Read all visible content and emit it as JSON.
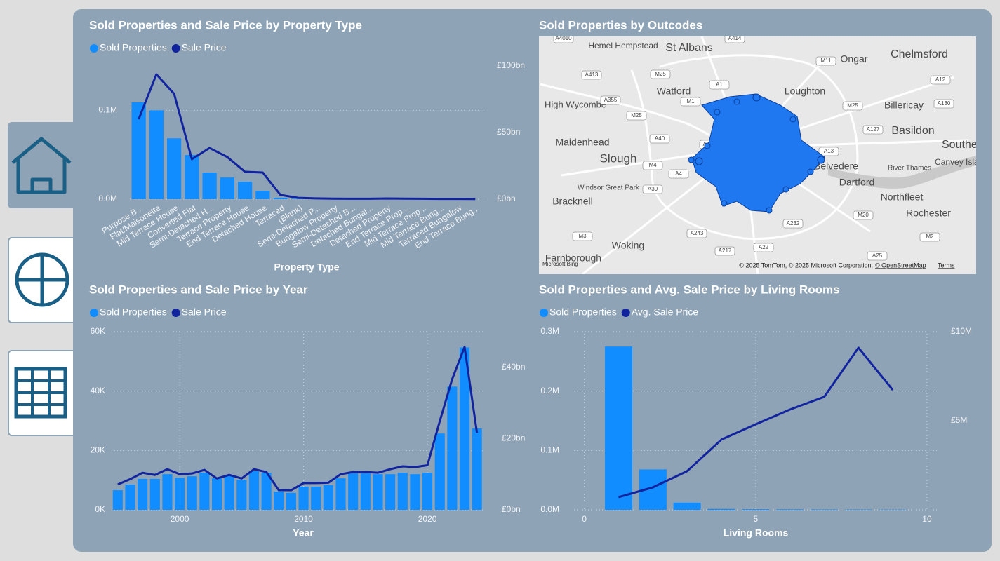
{
  "chart_data": [
    {
      "type": "combo",
      "title": "Sold Properties and Sale Price by Property Type",
      "x_label": "Property Type",
      "categories": [
        "Purpose B...",
        "Flat/Maisonette",
        "Mid Terrace House",
        "Converted Flat",
        "Semi-Detached H...",
        "Terrace Property",
        "End Terrace House",
        "Detached House",
        "Terraced",
        "(Blank)",
        "Semi-Detached P...",
        "Bungalow Property",
        "Semi-Detached B...",
        "Detached Bungal...",
        "Detached Property",
        "End Terrace Prop...",
        "Mid Terrace Prop...",
        "Mid Terrace Bung...",
        "Terraced Bungalow",
        "End Terrace Bung..."
      ],
      "series": [
        {
          "name": "Sold Properties",
          "type": "bar",
          "color": "#118dff",
          "values": [
            109000,
            100000,
            68500,
            49600,
            30000,
            24400,
            19700,
            9400,
            1600,
            600,
            400,
            300,
            250,
            200,
            200,
            150,
            150,
            100,
            100,
            50
          ]
        },
        {
          "name": "Sale Price",
          "type": "line",
          "color": "#12239e",
          "axis": "y2",
          "values": [
            60,
            93.7,
            79,
            30,
            38.4,
            31.6,
            20.5,
            20,
            3.2,
            1,
            0.6,
            0.4,
            0.3,
            0.3,
            0.5,
            0.4,
            0.3,
            0.2,
            0.2,
            0.1
          ]
        }
      ],
      "ylim": [
        0,
        150000
      ],
      "yticks": [
        {
          "value": 0,
          "label": "0.0M"
        },
        {
          "value": 100000,
          "label": "0.1M"
        }
      ],
      "y2lim": [
        0,
        100
      ],
      "y2ticks": [
        {
          "value": 0,
          "label": "£0bn"
        },
        {
          "value": 50,
          "label": "£50bn"
        },
        {
          "value": 100,
          "label": "£100bn"
        }
      ],
      "grid": true
    },
    {
      "type": "map",
      "title": "Sold Properties by Outcodes",
      "places": [
        "Hemel Hempstead",
        "St Albans",
        "Chelmsford",
        "Ongar",
        "Watford",
        "Loughton",
        "High Wycombe",
        "Billericay",
        "Basildon",
        "Maidenhead",
        "Slough",
        "Southend",
        "River Thames",
        "Canvey Island",
        "Windsor Great Park",
        "Dartford",
        "Northfleet",
        "Bracknell",
        "Rochester",
        "Woking",
        "Farnborough",
        "Belvedere"
      ],
      "roads": [
        "A4010",
        "A414",
        "A413",
        "M25",
        "M11",
        "A12",
        "A1",
        "M1",
        "A355",
        "A130",
        "M25",
        "M25",
        "A127",
        "A40",
        "A406",
        "A13",
        "M4",
        "A4",
        "A30",
        "M20",
        "A243",
        "M3",
        "A232",
        "A217",
        "A22",
        "A25",
        "M2"
      ],
      "provider": "Microsoft Bing",
      "attribution": "© 2025 TomTom, © 2025 Microsoft Corporation,",
      "osm_link": "© OpenStreetMap",
      "terms_link": "Terms"
    },
    {
      "type": "combo",
      "title": "Sold Properties and Sale Price by Year",
      "x_label": "Year",
      "x": [
        1995,
        1996,
        1997,
        1998,
        1999,
        2000,
        2001,
        2002,
        2003,
        2004,
        2005,
        2006,
        2007,
        2008,
        2009,
        2010,
        2011,
        2012,
        2013,
        2014,
        2015,
        2016,
        2017,
        2018,
        2019,
        2020,
        2021,
        2022,
        2023,
        2024
      ],
      "series": [
        {
          "name": "Sold Properties",
          "type": "bar",
          "color": "#118dff",
          "values": [
            6600,
            8500,
            10400,
            10400,
            12000,
            10800,
            11300,
            12500,
            10600,
            11600,
            10100,
            13000,
            12500,
            6100,
            5700,
            7800,
            7800,
            8300,
            10600,
            12300,
            12300,
            12000,
            12000,
            12500,
            12000,
            12500,
            25700,
            41500,
            54700,
            27400
          ]
        },
        {
          "name": "Sale Price",
          "type": "line",
          "color": "#12239e",
          "axis": "y2",
          "values": [
            7.1,
            8.6,
            10.4,
            9.8,
            11.4,
            10.0,
            10.2,
            11.2,
            8.8,
            9.8,
            8.8,
            11.4,
            10.6,
            5.5,
            5.5,
            7.5,
            7.5,
            7.6,
            10.0,
            10.6,
            10.6,
            10.4,
            11.4,
            12.2,
            12.0,
            12.5,
            24.9,
            36.7,
            45.7,
            21.6
          ]
        }
      ],
      "xlim": [
        1994.5,
        2024.5
      ],
      "xticks": [
        2000,
        2010,
        2020
      ],
      "ylim": [
        0,
        60000
      ],
      "yticks": [
        {
          "value": 0,
          "label": "0K"
        },
        {
          "value": 20000,
          "label": "20K"
        },
        {
          "value": 40000,
          "label": "40K"
        },
        {
          "value": 60000,
          "label": "60K"
        }
      ],
      "y2lim": [
        0,
        50
      ],
      "y2ticks": [
        {
          "value": 0,
          "label": "£0bn"
        },
        {
          "value": 20,
          "label": "£20bn"
        },
        {
          "value": 40,
          "label": "£40bn"
        }
      ],
      "grid": true
    },
    {
      "type": "combo",
      "title": "Sold Properties and Avg. Sale Price by Living Rooms",
      "x_label": "Living Rooms",
      "x": [
        1,
        2,
        3,
        4,
        5,
        6,
        7,
        8,
        9
      ],
      "series": [
        {
          "name": "Sold Properties",
          "type": "bar",
          "color": "#118dff",
          "values": [
            275000,
            68000,
            12000,
            1500,
            1000,
            800,
            600,
            500,
            400
          ]
        },
        {
          "name": "Avg. Sale Price",
          "type": "line",
          "color": "#12239e",
          "axis": "y2",
          "values": [
            710000,
            1260000,
            2170000,
            3940000,
            4800000,
            5630000,
            6340000,
            9100000,
            6730000
          ]
        }
      ],
      "xlim": [
        -0.3,
        10.3
      ],
      "xticks": [
        0,
        5,
        10
      ],
      "ylim": [
        0,
        300000
      ],
      "yticks": [
        {
          "value": 0,
          "label": "0.0M"
        },
        {
          "value": 100000,
          "label": "0.1M"
        },
        {
          "value": 200000,
          "label": "0.2M"
        },
        {
          "value": 300000,
          "label": "0.3M"
        }
      ],
      "y2lim": [
        0,
        10000000
      ],
      "y2ticks": [
        {
          "value": 5000000,
          "label": "£5M"
        },
        {
          "value": 10000000,
          "label": "£10M"
        }
      ],
      "grid": true
    }
  ]
}
